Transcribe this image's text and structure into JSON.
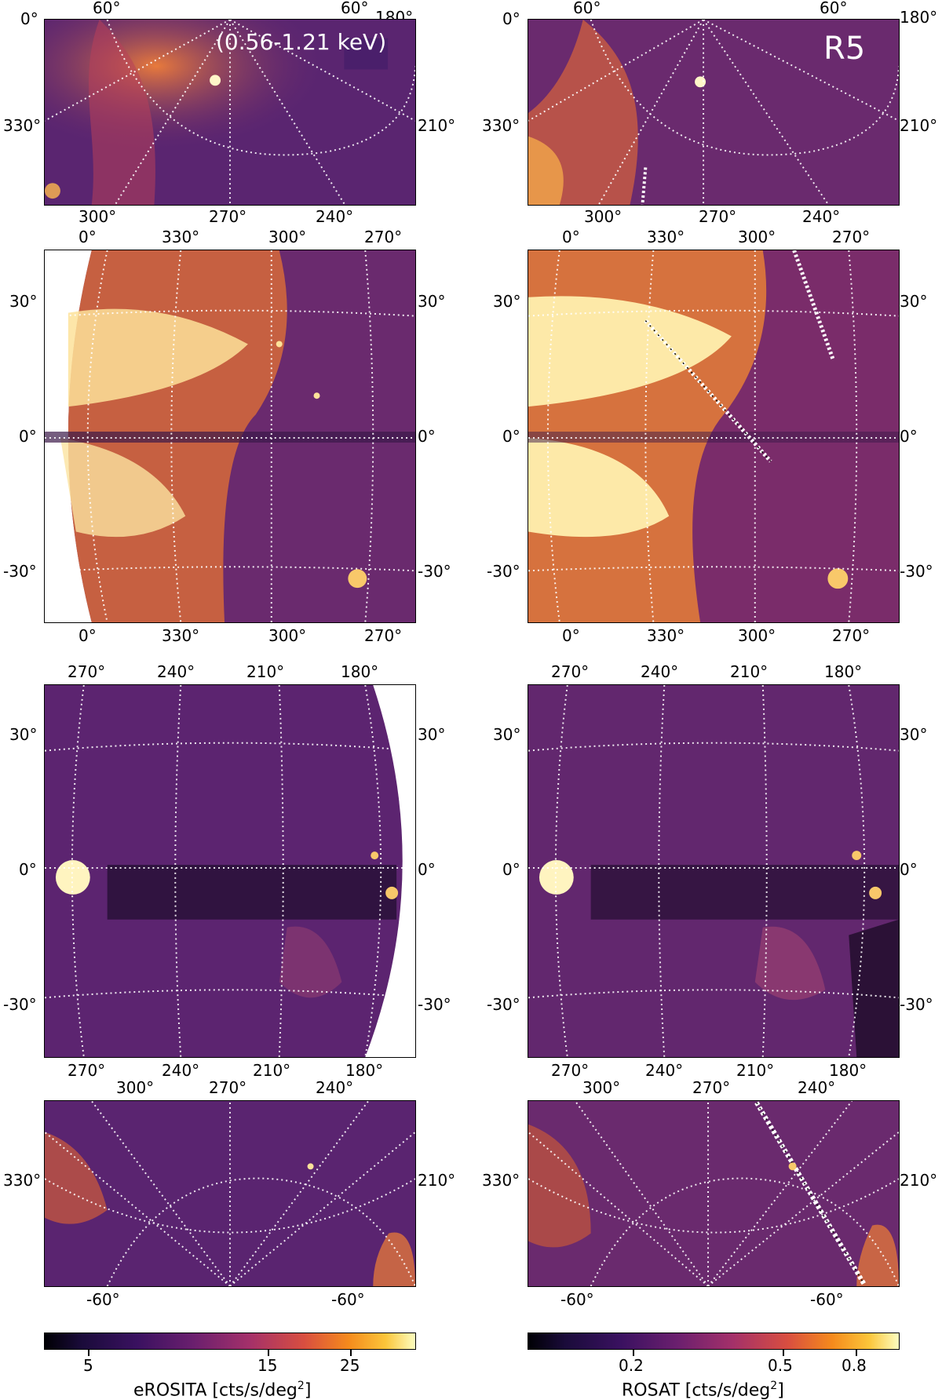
{
  "colors": {
    "dark": "#1a0b2e",
    "purple": "#4a1f6b",
    "magenta": "#8a2c6a",
    "orange": "#e0602a",
    "yellow": "#fbe27a",
    "white": "#fffbd8"
  },
  "panels": {
    "top_left": {
      "energy_label": "(0.56-1.21 keV)",
      "top_ticks": [
        "60°",
        "60°",
        "180°"
      ],
      "left_ticks": [
        "0°",
        "330°"
      ],
      "right_ticks": [
        "210°"
      ],
      "bottom_ticks": [
        "300°",
        "270°",
        "240°"
      ]
    },
    "top_right": {
      "region_label": "R5",
      "top_ticks": [
        "60°",
        "60°",
        "180°"
      ],
      "left_ticks": [
        "0°",
        "330°"
      ],
      "right_ticks": [
        "210°"
      ],
      "bottom_ticks": [
        "300°",
        "270°",
        "240°"
      ]
    },
    "row2_left": {
      "top_ticks": [
        "0°",
        "330°",
        "300°",
        "270°"
      ],
      "left_ticks": [
        "30°",
        "0°",
        "-30°"
      ],
      "right_ticks": [
        "30°",
        "0°",
        "-30°"
      ],
      "bottom_ticks": [
        "0°",
        "330°",
        "300°",
        "270°"
      ]
    },
    "row2_right": {
      "top_ticks": [
        "0°",
        "330°",
        "300°",
        "270°"
      ],
      "left_ticks": [
        "30°",
        "0°",
        "-30°"
      ],
      "right_ticks": [
        "30°",
        "0°",
        "-30°"
      ],
      "bottom_ticks": [
        "0°",
        "330°",
        "300°",
        "270°"
      ]
    },
    "row3_left": {
      "top_ticks": [
        "270°",
        "240°",
        "210°",
        "180°"
      ],
      "left_ticks": [
        "30°",
        "0°",
        "-30°"
      ],
      "right_ticks": [
        "30°",
        "0°",
        "-30°"
      ],
      "bottom_ticks": [
        "270°",
        "240°",
        "210°",
        "180°"
      ]
    },
    "row3_right": {
      "top_ticks": [
        "270°",
        "240°",
        "210°",
        "180°"
      ],
      "left_ticks": [
        "30°",
        "0°",
        "-30°"
      ],
      "right_ticks": [
        "30°",
        "0°",
        "-30°"
      ],
      "bottom_ticks": [
        "270°",
        "240°",
        "210°",
        "180°"
      ]
    },
    "bottom_left": {
      "top_ticks": [
        "300°",
        "270°",
        "240°"
      ],
      "left_ticks": [
        "330°"
      ],
      "right_ticks": [
        "210°"
      ],
      "bottom_ticks": [
        "-60°",
        "-60°"
      ]
    },
    "bottom_right": {
      "top_ticks": [
        "300°",
        "270°",
        "240°"
      ],
      "left_ticks": [
        "330°"
      ],
      "right_ticks": [
        "210°"
      ],
      "bottom_ticks": [
        "-60°",
        "-60°"
      ]
    }
  },
  "colorbars": {
    "erosita": {
      "title": "eROSITA [cts/s/deg",
      "title_sup": "2",
      "title_end": "]",
      "ticks": [
        "5",
        "15",
        "25"
      ]
    },
    "rosat": {
      "title": "ROSAT [cts/s/deg",
      "title_sup": "2",
      "title_end": "]",
      "ticks": [
        "0.2",
        "0.5",
        "0.8"
      ]
    }
  }
}
